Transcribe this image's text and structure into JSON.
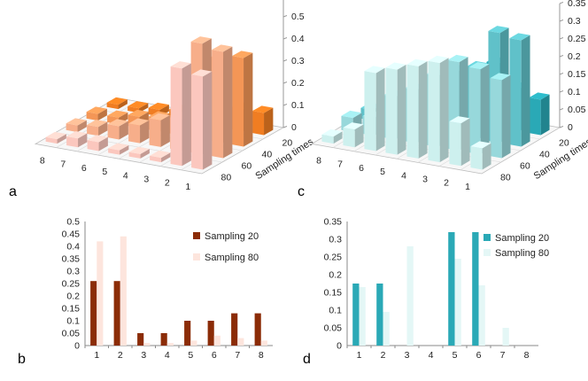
{
  "panel_labels": {
    "a": "a",
    "b": "b",
    "c": "c",
    "d": "d"
  },
  "chart_data": [
    {
      "panel": "a",
      "type": "bar3d",
      "x_categories": [
        "1",
        "2",
        "3",
        "4",
        "5",
        "6",
        "7",
        "8"
      ],
      "series_label": "Sampling times",
      "series": [
        {
          "name": "20",
          "values": [
            0.1,
            0.1,
            0.07,
            0.06,
            0.04,
            0.03,
            0.02,
            0.02
          ]
        },
        {
          "name": "40",
          "values": [
            0.4,
            0.38,
            0.12,
            0.08,
            0.06,
            0.05,
            0.03,
            0.03
          ]
        },
        {
          "name": "60",
          "values": [
            0.48,
            0.5,
            0.14,
            0.12,
            0.08,
            0.06,
            0.04,
            0.03
          ]
        },
        {
          "name": "80",
          "values": [
            0.42,
            0.44,
            0.02,
            0.02,
            0.02,
            0.04,
            0.04,
            0.02
          ]
        }
      ],
      "y_ticks": [
        "0",
        "0.1",
        "0.2",
        "0.3",
        "0.4",
        "0.5",
        "0.6"
      ],
      "ylim": [
        0,
        0.6
      ],
      "colors": {
        "front": "#fbc7be",
        "back": "#f07d22"
      }
    },
    {
      "panel": "b",
      "type": "bar",
      "categories": [
        "1",
        "2",
        "3",
        "4",
        "5",
        "6",
        "7",
        "8"
      ],
      "series": [
        {
          "name": "Sampling  20",
          "values": [
            0.26,
            0.26,
            0.05,
            0.05,
            0.1,
            0.1,
            0.13,
            0.13
          ],
          "color": "#8b2c07"
        },
        {
          "name": "Sampling  80",
          "values": [
            0.42,
            0.44,
            0.01,
            0.01,
            0.02,
            0.04,
            0.03,
            0.02
          ],
          "color": "#fde5dd"
        }
      ],
      "y_ticks": [
        "0",
        "0.05",
        "0.1",
        "0.15",
        "0.2",
        "0.25",
        "0.3",
        "0.35",
        "0.4",
        "0.45",
        "0.5"
      ],
      "ylim": [
        0,
        0.5
      ]
    },
    {
      "panel": "c",
      "type": "bar3d",
      "x_categories": [
        "1",
        "2",
        "3",
        "4",
        "5",
        "6",
        "7",
        "8"
      ],
      "series_label": "Sampling times",
      "series": [
        {
          "name": "20",
          "values": [
            0.1,
            0.12,
            0.18,
            0.15,
            0.12,
            0.08,
            0.04,
            0.02
          ]
        },
        {
          "name": "40",
          "values": [
            0.3,
            0.31,
            0.2,
            0.18,
            0.1,
            0.09,
            0.05,
            0.03
          ]
        },
        {
          "name": "60",
          "values": [
            0.22,
            0.24,
            0.25,
            0.2,
            0.15,
            0.12,
            0.05,
            0.04
          ]
        },
        {
          "name": "80",
          "values": [
            0.06,
            0.12,
            0.28,
            0.26,
            0.24,
            0.22,
            0.05,
            0.02
          ]
        }
      ],
      "y_ticks": [
        "0",
        "0.05",
        "0.1",
        "0.15",
        "0.2",
        "0.25",
        "0.3",
        "0.35"
      ],
      "ylim": [
        0,
        0.35
      ],
      "colors": {
        "front": "#cdf0ee",
        "back": "#2aa9b6"
      }
    },
    {
      "panel": "d",
      "type": "bar",
      "categories": [
        "1",
        "2",
        "3",
        "4",
        "5",
        "6",
        "7",
        "8"
      ],
      "series": [
        {
          "name": "Sampling 20",
          "values": [
            0.175,
            0.175,
            0,
            0,
            0.32,
            0.32,
            0,
            0
          ],
          "color": "#2aa9b6"
        },
        {
          "name": "Sampling 80",
          "values": [
            0.165,
            0.095,
            0.28,
            0,
            0.245,
            0.17,
            0.05,
            0
          ],
          "color": "#e4f7f6"
        }
      ],
      "y_ticks": [
        "0",
        "0.05",
        "0.1",
        "0.15",
        "0.2",
        "0.25",
        "0.3",
        "0.35"
      ],
      "ylim": [
        0,
        0.35
      ]
    }
  ]
}
